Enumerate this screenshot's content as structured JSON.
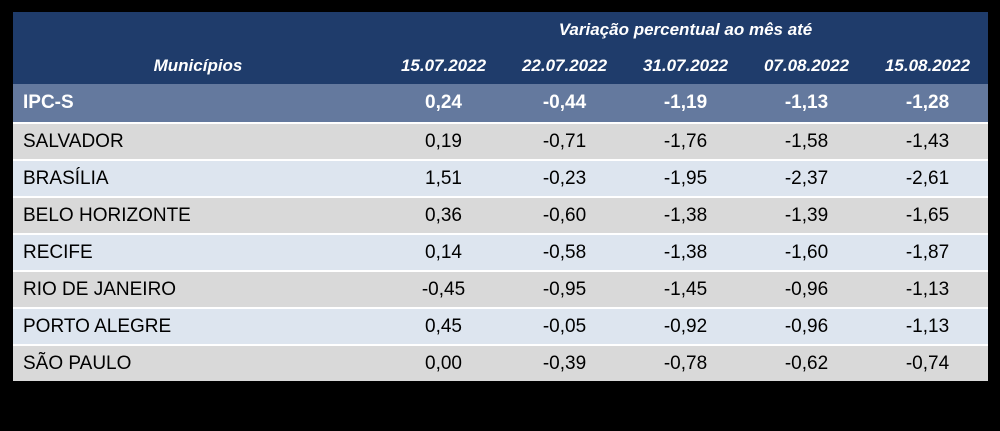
{
  "table": {
    "header": {
      "group_title": "Variação percentual ao mês até",
      "col_municipios": "Municípios",
      "dates": [
        "15.07.2022",
        "22.07.2022",
        "31.07.2022",
        "07.08.2022",
        "15.08.2022"
      ]
    },
    "rows": [
      {
        "name": "IPC-S",
        "values": [
          "0,24",
          "-0,44",
          "-1,19",
          "-1,13",
          "-1,28"
        ]
      },
      {
        "name": "SALVADOR",
        "values": [
          "0,19",
          "-0,71",
          "-1,76",
          "-1,58",
          "-1,43"
        ]
      },
      {
        "name": "BRASÍLIA",
        "values": [
          "1,51",
          "-0,23",
          "-1,95",
          "-2,37",
          "-2,61"
        ]
      },
      {
        "name": "BELO HORIZONTE",
        "values": [
          "0,36",
          "-0,60",
          "-1,38",
          "-1,39",
          "-1,65"
        ]
      },
      {
        "name": "RECIFE",
        "values": [
          "0,14",
          "-0,58",
          "-1,38",
          "-1,60",
          "-1,87"
        ]
      },
      {
        "name": "RIO DE JANEIRO",
        "values": [
          "-0,45",
          "-0,95",
          "-1,45",
          "-0,96",
          "-1,13"
        ]
      },
      {
        "name": "PORTO ALEGRE",
        "values": [
          "0,45",
          "-0,05",
          "-0,92",
          "-0,96",
          "-1,13"
        ]
      },
      {
        "name": "SÃO PAULO",
        "values": [
          "0,00",
          "-0,39",
          "-0,78",
          "-0,62",
          "-0,74"
        ]
      }
    ]
  },
  "colors": {
    "page_background": "#000000",
    "header_bg": "#1F3C6B",
    "header_text": "#FFFFFF",
    "ipcs_row_bg": "#64799E",
    "row_gray": "#D9D9D9",
    "row_blue": "#DDE5EF",
    "row_separator": "#FFFFFF"
  },
  "chart_data": {
    "type": "table",
    "title": "Variação percentual ao mês até",
    "columns": [
      "Municípios",
      "15.07.2022",
      "22.07.2022",
      "31.07.2022",
      "07.08.2022",
      "15.08.2022"
    ],
    "rows": [
      {
        "name": "IPC-S",
        "values": [
          0.24,
          -0.44,
          -1.19,
          -1.13,
          -1.28
        ]
      },
      {
        "name": "SALVADOR",
        "values": [
          0.19,
          -0.71,
          -1.76,
          -1.58,
          -1.43
        ]
      },
      {
        "name": "BRASÍLIA",
        "values": [
          1.51,
          -0.23,
          -1.95,
          -2.37,
          -2.61
        ]
      },
      {
        "name": "BELO HORIZONTE",
        "values": [
          0.36,
          -0.6,
          -1.38,
          -1.39,
          -1.65
        ]
      },
      {
        "name": "RECIFE",
        "values": [
          0.14,
          -0.58,
          -1.38,
          -1.6,
          -1.87
        ]
      },
      {
        "name": "RIO DE JANEIRO",
        "values": [
          -0.45,
          -0.95,
          -1.45,
          -0.96,
          -1.13
        ]
      },
      {
        "name": "PORTO ALEGRE",
        "values": [
          0.45,
          -0.05,
          -0.92,
          -0.96,
          -1.13
        ]
      },
      {
        "name": "SÃO PAULO",
        "values": [
          0.0,
          -0.39,
          -0.78,
          -0.62,
          -0.74
        ]
      }
    ]
  }
}
